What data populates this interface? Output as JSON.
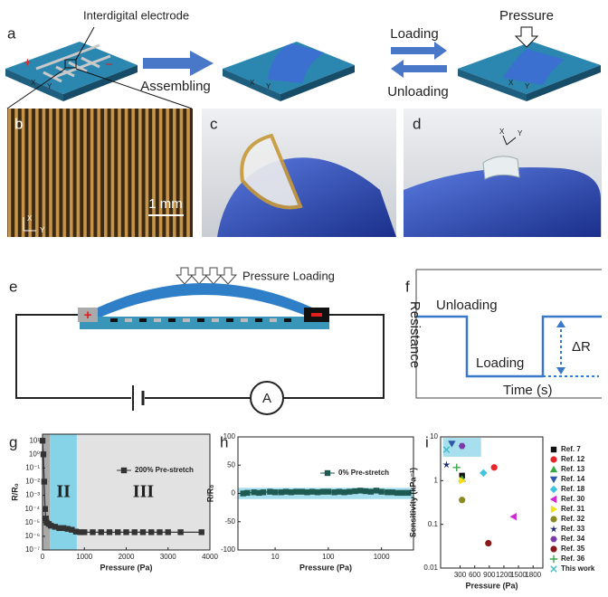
{
  "panels": {
    "a": {
      "letter": "a",
      "electrode_label": "Interdigital electrode",
      "assembling": "Assembling",
      "loading": "Loading",
      "unloading": "Unloading",
      "pressure": "Pressure",
      "plus": "+",
      "minus": "−",
      "x": "X",
      "y": "Y"
    },
    "b": {
      "letter": "b",
      "scale_bar": "1 mm",
      "x": "X",
      "y": "Y"
    },
    "c": {
      "letter": "c"
    },
    "d": {
      "letter": "d",
      "x": "X",
      "y": "Y"
    },
    "e": {
      "letter": "e",
      "pressure_loading": "Pressure Loading",
      "plus": "+",
      "ammeter": "A"
    },
    "f": {
      "letter": "f",
      "y_label": "Resistance",
      "unloading": "Unloading",
      "loading": "Loading",
      "delta": "ΔR",
      "x_label": "Time (s)"
    }
  },
  "chart_data": [
    {
      "type": "line",
      "letter": "g",
      "x_label": "Pressure (Pa)",
      "y_label": "R/R₀",
      "y_log": true,
      "legend": "top-right",
      "xlim": [
        0,
        4000
      ],
      "xticks": [
        0,
        1000,
        2000,
        3000,
        4000
      ],
      "ylim": [
        1e-07,
        30
      ],
      "yticks": [
        {
          "value": 10,
          "label": "10¹"
        },
        {
          "value": 1,
          "label": "10⁰"
        },
        {
          "value": 0.1,
          "label": "10⁻¹"
        },
        {
          "value": 0.01,
          "label": "10⁻²"
        },
        {
          "value": 0.001,
          "label": "10⁻³"
        },
        {
          "value": 0.0001,
          "label": "10⁻⁴"
        },
        {
          "value": 1e-05,
          "label": "10⁻⁵"
        },
        {
          "value": 1e-06,
          "label": "10⁻⁶"
        },
        {
          "value": 1e-07,
          "label": "10⁻⁷"
        }
      ],
      "regions": [
        {
          "x": [
            0,
            180
          ],
          "color": "#a9a9a9"
        },
        {
          "x": [
            180,
            820
          ],
          "color": "#86d3e8",
          "label": "II"
        },
        {
          "x": [
            820,
            4000
          ],
          "color": "#e2e2e2",
          "label": "III"
        }
      ],
      "series": [
        {
          "name": "200% Pre-stretch",
          "color": "#333333",
          "marker": "square",
          "x": [
            0,
            20,
            40,
            60,
            80,
            100,
            150,
            200,
            300,
            400,
            500,
            600,
            700,
            800,
            900,
            1000,
            1200,
            1400,
            1600,
            1800,
            2000,
            2200,
            2400,
            2600,
            2800,
            3000,
            3300,
            3800
          ],
          "values": [
            10,
            1,
            0.01,
            0.0001,
            2e-05,
            1e-05,
            8e-06,
            6e-06,
            5e-06,
            4e-06,
            4e-06,
            3.5e-06,
            3e-06,
            2.2e-06,
            2e-06,
            2e-06,
            2e-06,
            2e-06,
            2e-06,
            2e-06,
            2e-06,
            2e-06,
            2e-06,
            2e-06,
            2e-06,
            2e-06,
            2e-06,
            2e-06
          ]
        }
      ]
    },
    {
      "type": "line",
      "letter": "h",
      "x_label": "Pressure (Pa)",
      "y_label": "R/R₀",
      "x_log": true,
      "legend": "top-right",
      "xlim": [
        2,
        4000
      ],
      "xticks": [
        10,
        100,
        1000
      ],
      "ylim": [
        -100,
        100
      ],
      "yticks": [
        -100,
        -50,
        0,
        50,
        100
      ],
      "band": {
        "y": [
          -10,
          10
        ],
        "color": "#a8dfee"
      },
      "series": [
        {
          "name": "0% Pre-stretch",
          "color": "#1f5a52",
          "marker": "square",
          "x": [
            2.5,
            3,
            4,
            5,
            6,
            8,
            10,
            13,
            16,
            20,
            25,
            32,
            40,
            50,
            63,
            80,
            100,
            130,
            160,
            200,
            250,
            320,
            400,
            500,
            630,
            800,
            1000,
            1300,
            1600,
            2000,
            2500,
            3200
          ],
          "values": [
            0,
            1,
            2,
            1,
            2,
            3,
            2,
            2,
            3,
            2,
            3,
            3,
            2,
            3,
            2,
            3,
            3,
            2,
            3,
            2,
            3,
            4,
            5,
            4,
            3,
            5,
            3,
            2,
            2,
            1,
            1,
            1
          ]
        }
      ]
    },
    {
      "type": "scatter",
      "letter": "i",
      "x_label": "Pressure (Pa)",
      "y_label": "Sensitivity (kPa⁻¹)",
      "y_log": true,
      "legend": "right",
      "xlim": [
        -100,
        2000
      ],
      "xticks": [
        300,
        600,
        900,
        1200,
        1500,
        1800
      ],
      "ylim": [
        0.01,
        10
      ],
      "yticks": [
        0.01,
        0.1,
        1,
        10
      ],
      "highlight": {
        "x": [
          -50,
          730
        ],
        "y": [
          3.5,
          9.5
        ],
        "color": "#a8dfee"
      },
      "series": [
        {
          "name": "Ref. 7",
          "color": "#111111",
          "marker": "square",
          "x": [
            340
          ],
          "values": [
            1.3
          ]
        },
        {
          "name": "Ref. 12",
          "color": "#e8262a",
          "marker": "circle",
          "x": [
            1000
          ],
          "values": [
            2
          ]
        },
        {
          "name": "Ref. 13",
          "color": "#3aa84a",
          "marker": "triangle-up",
          "x": [
            340
          ],
          "values": [
            1.1
          ]
        },
        {
          "name": "Ref. 14",
          "color": "#2d5aa8",
          "marker": "triangle-down",
          "x": [
            130
          ],
          "values": [
            7
          ]
        },
        {
          "name": "Ref. 18",
          "color": "#3fc4e0",
          "marker": "diamond",
          "x": [
            780
          ],
          "values": [
            1.5
          ]
        },
        {
          "name": "Ref. 30",
          "color": "#d22ad2",
          "marker": "triangle-left",
          "x": [
            1400
          ],
          "values": [
            0.15
          ]
        },
        {
          "name": "Ref. 31",
          "color": "#f2e01a",
          "marker": "triangle-right",
          "x": [
            340
          ],
          "values": [
            1
          ]
        },
        {
          "name": "Ref. 32",
          "color": "#8a8a20",
          "marker": "circle",
          "x": [
            340
          ],
          "values": [
            0.36
          ]
        },
        {
          "name": "Ref. 33",
          "color": "#1e2a70",
          "marker": "star",
          "x": [
            20
          ],
          "values": [
            2.3
          ]
        },
        {
          "name": "Ref. 34",
          "color": "#7a3aa8",
          "marker": "hexagon",
          "x": [
            340
          ],
          "values": [
            6.2
          ]
        },
        {
          "name": "Ref. 35",
          "color": "#8a1a1a",
          "marker": "circle",
          "x": [
            880
          ],
          "values": [
            0.037
          ]
        },
        {
          "name": "Ref. 36",
          "color": "#3aa84a",
          "marker": "plus",
          "x": [
            230
          ],
          "values": [
            2
          ]
        },
        {
          "name": "This work",
          "color": "#3fb8c8",
          "marker": "x",
          "x": [
            20
          ],
          "values": [
            5.1
          ]
        }
      ]
    }
  ]
}
